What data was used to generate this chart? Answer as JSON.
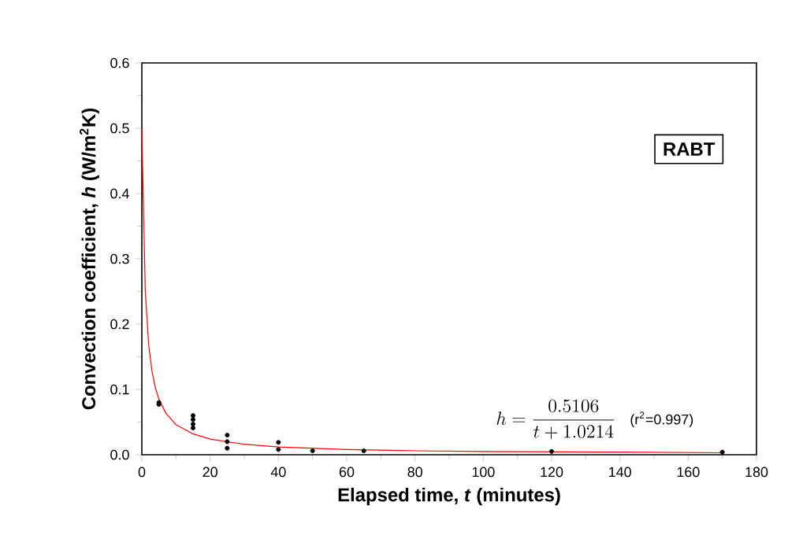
{
  "chart_data": {
    "type": "scatter",
    "xlabel": "Elapsed time, *t* (minutes)",
    "ylabel": "Convection coefficient, *h* (W/m$^{2}$K)",
    "xlim": [
      0,
      180
    ],
    "xticks": [
      0,
      20,
      40,
      60,
      80,
      100,
      120,
      140,
      160,
      180
    ],
    "ylim": [
      0,
      0.6
    ],
    "yticks": [
      {
        "value": 0,
        "label": "0.0"
      },
      {
        "value": 0.1,
        "label": "0.1"
      },
      {
        "value": 0.2,
        "label": "0.2"
      },
      {
        "value": 0.3,
        "label": "0.3"
      },
      {
        "value": 0.4,
        "label": "0.4"
      },
      {
        "value": 0.5,
        "label": "0.5"
      },
      {
        "value": 0.6,
        "label": "0.6"
      }
    ],
    "series": [
      {
        "color": "#000000",
        "marker": "circle",
        "x": [
          5,
          5,
          15,
          15,
          15,
          15,
          25,
          25,
          25,
          40,
          40,
          50,
          65,
          120,
          170
        ],
        "values": [
          0.08,
          0.077,
          0.06,
          0.054,
          0.047,
          0.041,
          0.03,
          0.02,
          0.01,
          0.019,
          0.008,
          0.006,
          0.006,
          0.005,
          0.004
        ]
      },
      {
        "type": "line",
        "color": "#ff0000",
        "marker": "none",
        "line_style": "solid",
        "x": [
          0,
          1,
          2,
          3,
          4,
          5,
          7,
          10,
          15,
          20,
          30,
          40,
          60,
          80,
          100,
          140,
          170
        ],
        "values": [
          0.5,
          0.252,
          0.169,
          0.127,
          0.102,
          0.085,
          0.064,
          0.046,
          0.032,
          0.024,
          0.016,
          0.012,
          0.008,
          0.006,
          0.005,
          0.004,
          0.003
        ]
      }
    ],
    "annotations": [
      "RABT",
      "h=\\frac{0.5106}{t+1.0214}",
      "(r$^{2}$=0.997)"
    ]
  }
}
